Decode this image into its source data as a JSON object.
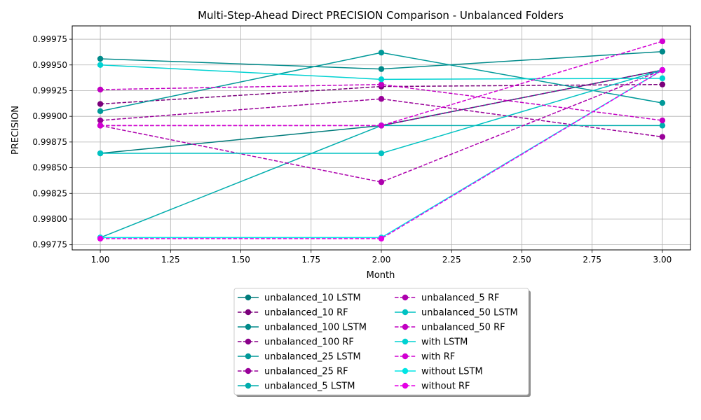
{
  "chart_data": {
    "type": "line",
    "title": "Multi-Step-Ahead Direct PRECISION Comparison - Unbalanced Folders",
    "xlabel": "Month",
    "ylabel": "PRECISION",
    "x": [
      1,
      2,
      3
    ],
    "xlim": [
      0.9,
      3.1
    ],
    "ylim": [
      0.9977,
      0.99988
    ],
    "xticks": [
      "1.00",
      "1.25",
      "1.50",
      "1.75",
      "2.00",
      "2.25",
      "2.50",
      "2.75",
      "3.00"
    ],
    "xtick_values": [
      1.0,
      1.25,
      1.5,
      1.75,
      2.0,
      2.25,
      2.5,
      2.75,
      3.0
    ],
    "yticks": [
      "0.99775",
      "0.99800",
      "0.99825",
      "0.99850",
      "0.99875",
      "0.99900",
      "0.99925",
      "0.99950",
      "0.99975"
    ],
    "ytick_values": [
      0.99775,
      0.998,
      0.99825,
      0.9985,
      0.99875,
      0.999,
      0.99925,
      0.9995,
      0.99975
    ],
    "grid": true,
    "legend_position": "bottom-center",
    "series": [
      {
        "name": "unbalanced_10 LSTM",
        "values": [
          0.99864,
          0.99891,
          0.99945
        ],
        "color": "#007b7b",
        "style": "solid"
      },
      {
        "name": "unbalanced_10 RF",
        "values": [
          0.99912,
          0.99929,
          0.99931
        ],
        "color": "#7b007b",
        "style": "dashed"
      },
      {
        "name": "unbalanced_100 LSTM",
        "values": [
          0.99956,
          0.99946,
          0.99963
        ],
        "color": "#008a8a",
        "style": "solid"
      },
      {
        "name": "unbalanced_100 RF",
        "values": [
          0.99891,
          0.99891,
          0.99945
        ],
        "color": "#8a008a",
        "style": "dashed"
      },
      {
        "name": "unbalanced_25 LSTM",
        "values": [
          0.99905,
          0.99962,
          0.99913
        ],
        "color": "#009999",
        "style": "solid"
      },
      {
        "name": "unbalanced_25 RF",
        "values": [
          0.99896,
          0.99917,
          0.9988
        ],
        "color": "#990099",
        "style": "dashed"
      },
      {
        "name": "unbalanced_5 LSTM",
        "values": [
          0.99782,
          0.99891,
          0.99891
        ],
        "color": "#00adad",
        "style": "solid"
      },
      {
        "name": "unbalanced_5 RF",
        "values": [
          0.99891,
          0.99836,
          0.99945
        ],
        "color": "#ad00ad",
        "style": "dashed"
      },
      {
        "name": "unbalanced_50 LSTM",
        "values": [
          0.99864,
          0.99864,
          0.99945
        ],
        "color": "#00c2c2",
        "style": "solid"
      },
      {
        "name": "unbalanced_50 RF",
        "values": [
          0.99926,
          0.99931,
          0.99896
        ],
        "color": "#c200c2",
        "style": "dashed"
      },
      {
        "name": "with LSTM",
        "values": [
          0.9995,
          0.99936,
          0.99937
        ],
        "color": "#00d2d2",
        "style": "solid"
      },
      {
        "name": "with RF",
        "values": [
          0.99891,
          0.99891,
          0.99973
        ],
        "color": "#d200d2",
        "style": "dashed"
      },
      {
        "name": "without LSTM",
        "values": [
          0.99782,
          0.99782,
          0.99945
        ],
        "color": "#00e5e5",
        "style": "solid"
      },
      {
        "name": "without RF",
        "values": [
          0.99781,
          0.99781,
          0.99945
        ],
        "color": "#e500e5",
        "style": "dashed"
      }
    ]
  }
}
